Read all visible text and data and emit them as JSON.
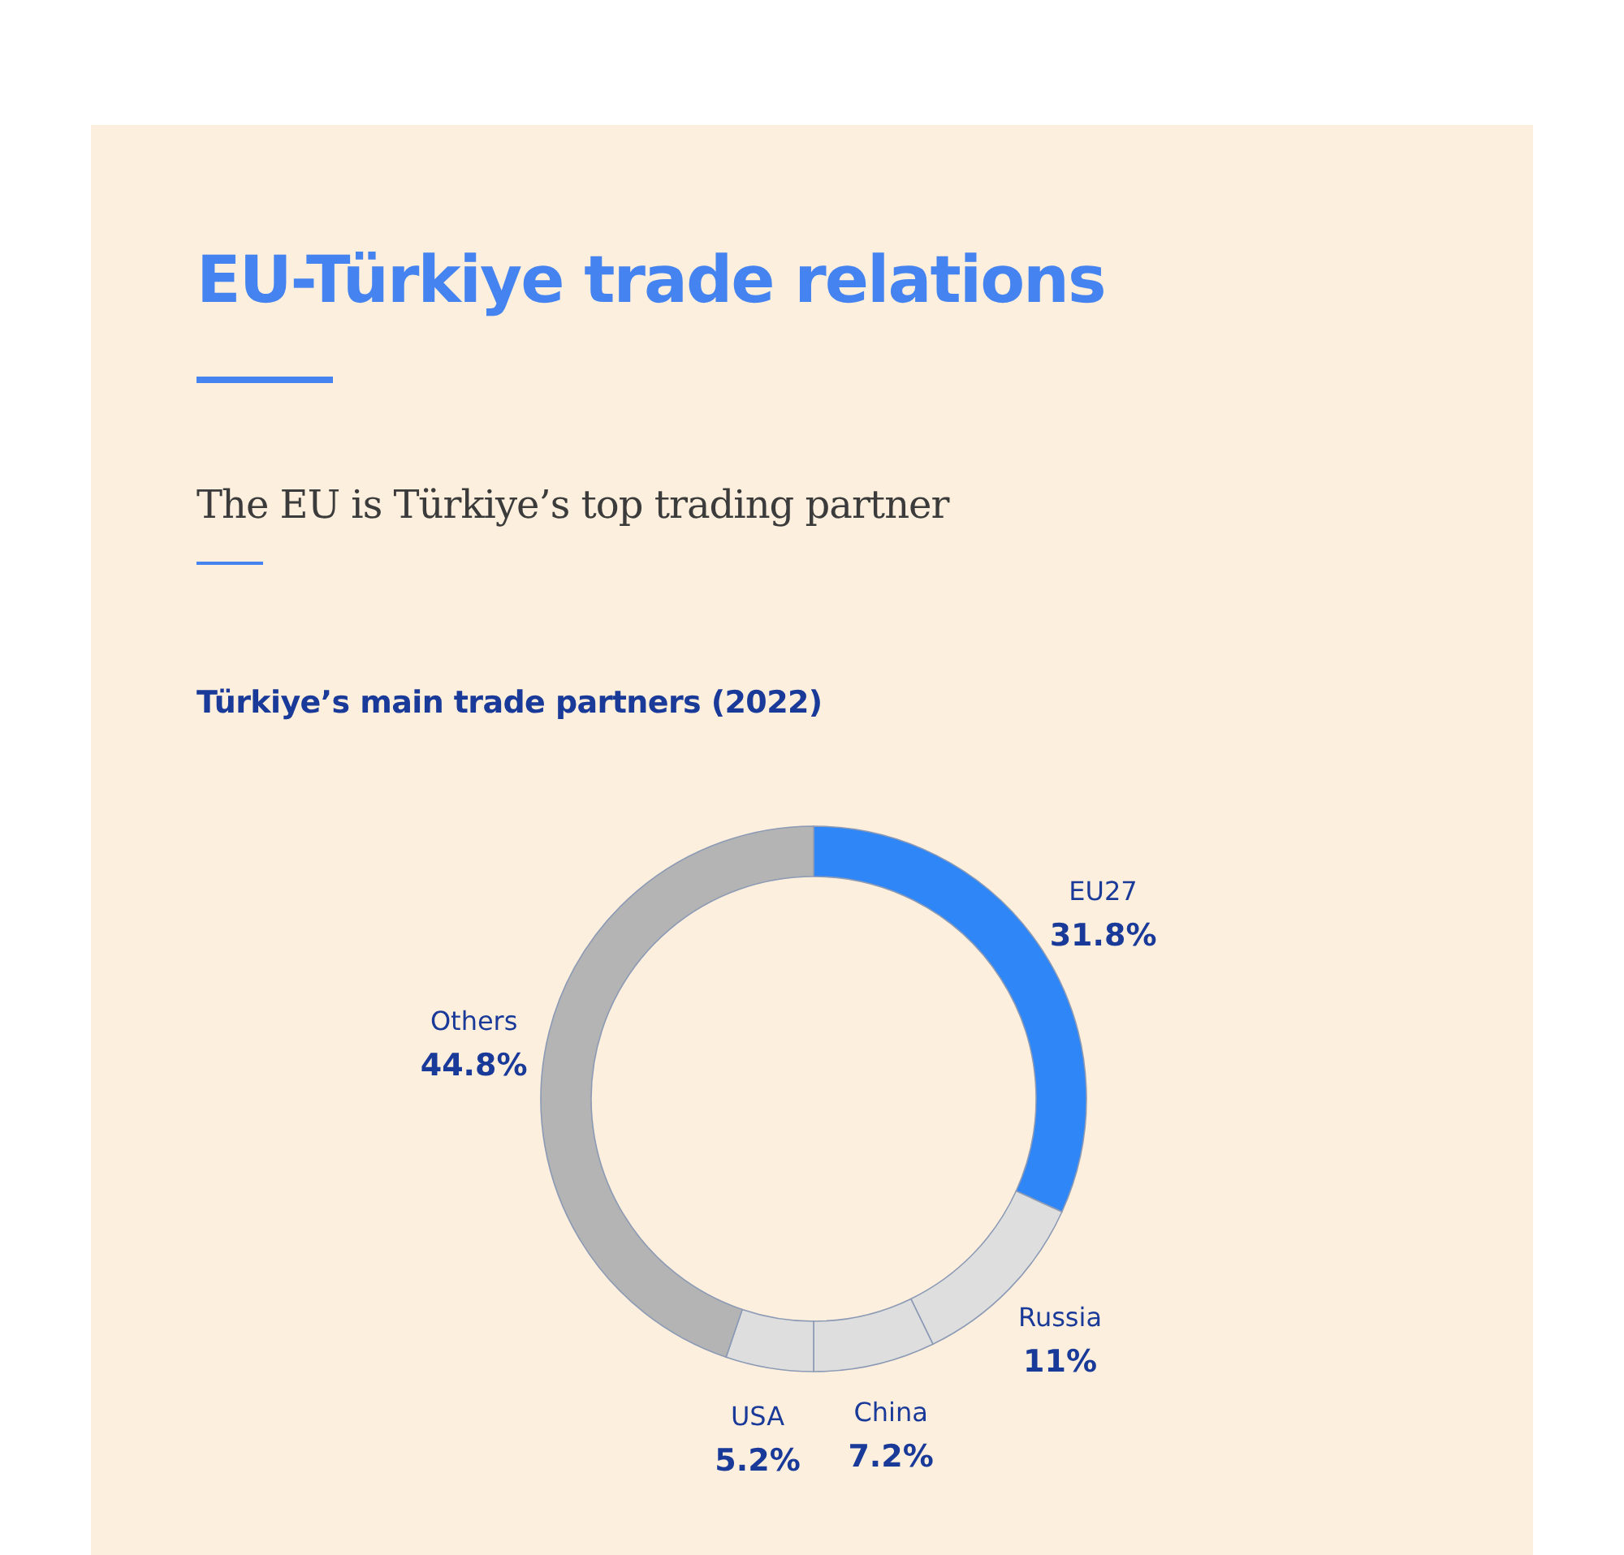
{
  "chart_data": {
    "type": "donut",
    "title": "EU-Türkiye trade relations",
    "subtitle": "The EU is Türkiye’s top trading partner",
    "annotations": [
      "Türkiye’s main trade partners (2022)"
    ],
    "categories": [
      "EU27",
      "Russia",
      "China",
      "USA",
      "Others"
    ],
    "values": [
      31.8,
      11,
      7.2,
      5.2,
      44.8
    ],
    "value_labels": [
      "31.8%",
      "11%",
      "7.2%",
      "5.2%",
      "44.8%"
    ],
    "colors": [
      "#2e86f7",
      "#dedede",
      "#dedede",
      "#dedede",
      "#b4b4b4"
    ]
  }
}
